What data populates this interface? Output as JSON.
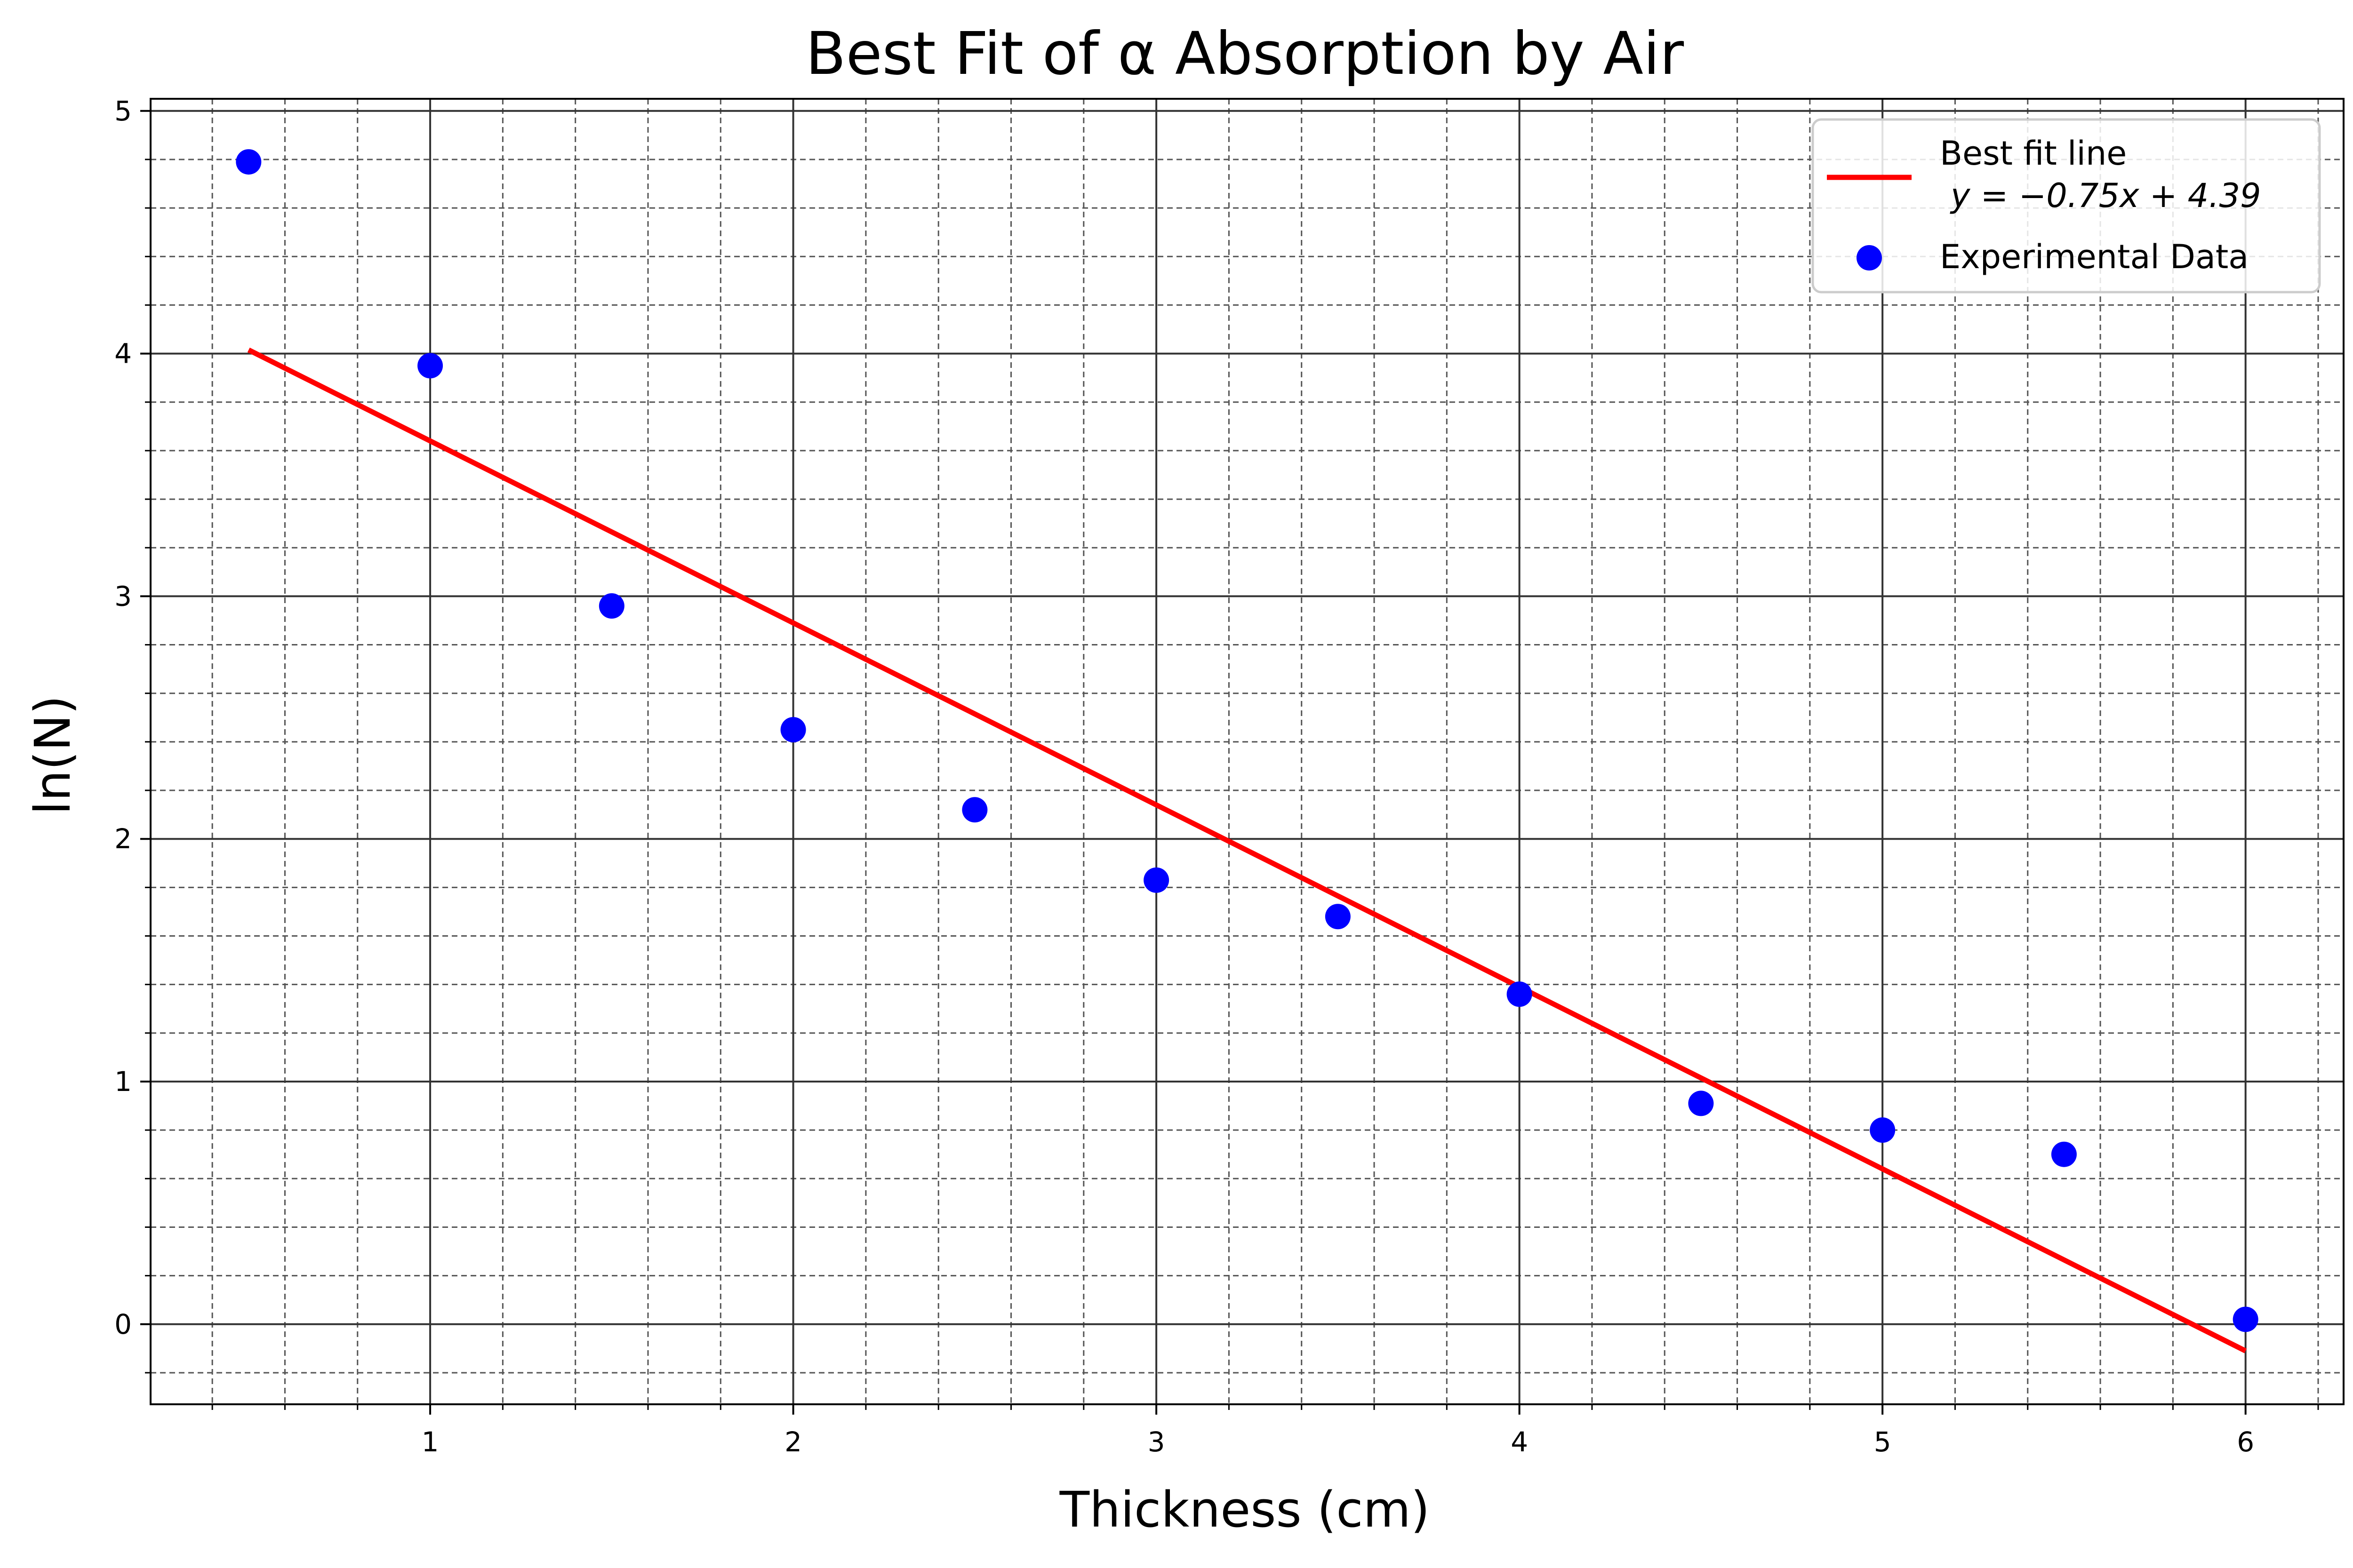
{
  "chart_data": {
    "type": "scatter",
    "title": "Best Fit of α Absorption by Air",
    "xlabel": "Thickness (cm)",
    "ylabel": "ln(N)",
    "xlim": [
      0.23,
      6.27
    ],
    "ylim": [
      -0.33,
      5.05
    ],
    "xticks": [
      1,
      2,
      3,
      4,
      5,
      6
    ],
    "yticks": [
      0,
      1,
      2,
      3,
      4,
      5
    ],
    "grid": {
      "major": true,
      "minor": true
    },
    "legend_position": "top-right",
    "series": [
      {
        "name": "Experimental Data",
        "kind": "scatter",
        "color": "#0000ff",
        "x": [
          0.5,
          1.0,
          1.5,
          2.0,
          2.5,
          3.0,
          3.5,
          4.0,
          4.5,
          5.0,
          5.5,
          6.0
        ],
        "y": [
          4.79,
          3.95,
          2.96,
          2.45,
          2.12,
          1.83,
          1.68,
          1.36,
          0.91,
          0.8,
          0.7,
          0.02
        ]
      },
      {
        "name": "Best fit line",
        "kind": "line",
        "color": "#ff0000",
        "slope": -0.75,
        "intercept": 4.39,
        "x": [
          0.5,
          6.0
        ],
        "equation": "y = −0.75x + 4.39"
      }
    ]
  }
}
